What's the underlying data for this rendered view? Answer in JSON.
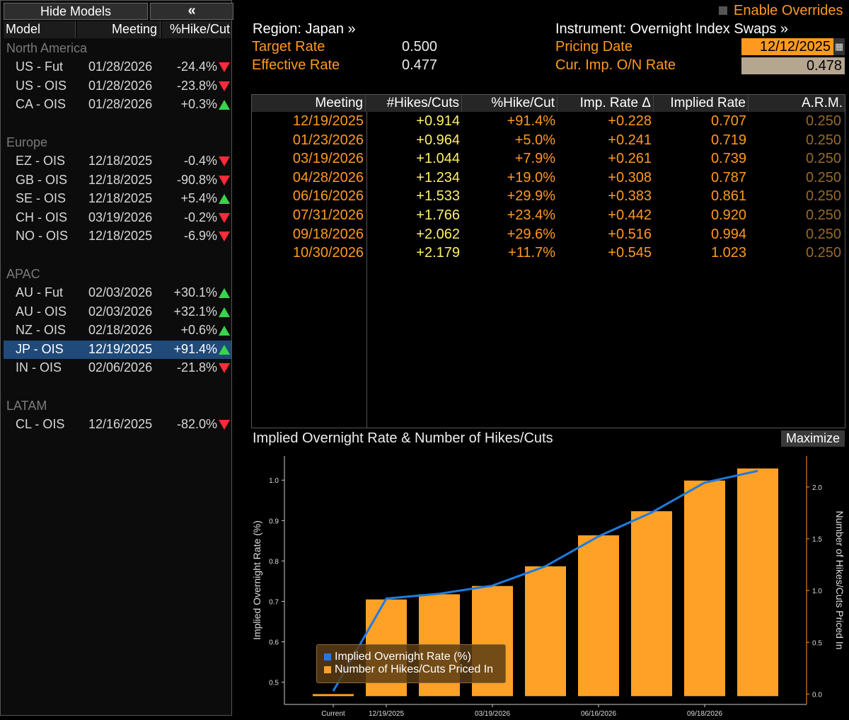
{
  "sidebar": {
    "hide_models_label": "Hide Models",
    "collapse_label": "«",
    "headers": {
      "model": "Model",
      "meeting": "Meeting",
      "pct": "%Hike/Cut"
    },
    "groups": [
      {
        "name": "North America",
        "rows": [
          {
            "model": "US - Fut",
            "meeting": "01/28/2026",
            "pct": "-24.4%",
            "dir": "down"
          },
          {
            "model": "US - OIS",
            "meeting": "01/28/2026",
            "pct": "-23.8%",
            "dir": "down"
          },
          {
            "model": "CA - OIS",
            "meeting": "01/28/2026",
            "pct": "+0.3%",
            "dir": "up"
          }
        ]
      },
      {
        "name": "Europe",
        "rows": [
          {
            "model": "EZ - OIS",
            "meeting": "12/18/2025",
            "pct": "-0.4%",
            "dir": "down"
          },
          {
            "model": "GB - OIS",
            "meeting": "12/18/2025",
            "pct": "-90.8%",
            "dir": "down"
          },
          {
            "model": "SE - OIS",
            "meeting": "12/18/2025",
            "pct": "+5.4%",
            "dir": "up"
          },
          {
            "model": "CH - OIS",
            "meeting": "03/19/2026",
            "pct": "-0.2%",
            "dir": "down"
          },
          {
            "model": "NO - OIS",
            "meeting": "12/18/2025",
            "pct": "-6.9%",
            "dir": "down"
          }
        ]
      },
      {
        "name": "APAC",
        "rows": [
          {
            "model": "AU - Fut",
            "meeting": "02/03/2026",
            "pct": "+30.1%",
            "dir": "up"
          },
          {
            "model": "AU - OIS",
            "meeting": "02/03/2026",
            "pct": "+32.1%",
            "dir": "up"
          },
          {
            "model": "NZ - OIS",
            "meeting": "02/18/2026",
            "pct": "+0.6%",
            "dir": "up"
          },
          {
            "model": "JP - OIS",
            "meeting": "12/19/2025",
            "pct": "+91.4%",
            "dir": "up",
            "selected": true
          },
          {
            "model": "IN - OIS",
            "meeting": "02/06/2026",
            "pct": "-21.8%",
            "dir": "down"
          }
        ]
      },
      {
        "name": "LATAM",
        "rows": [
          {
            "model": "CL - OIS",
            "meeting": "12/16/2025",
            "pct": "-82.0%",
            "dir": "down"
          }
        ]
      }
    ]
  },
  "top": {
    "enable_overrides": "Enable Overrides",
    "region": "Region: Japan »",
    "instrument": "Instrument: Overnight Index Swaps »",
    "target_rate_label": "Target Rate",
    "target_rate": "0.500",
    "effective_rate_label": "Effective Rate",
    "effective_rate": "0.477",
    "pricing_date_label": "Pricing Date",
    "pricing_date": "12/12/2025",
    "calendar_icon": "calendar-icon",
    "cur_rate_label": "Cur. Imp. O/N Rate",
    "cur_rate": "0.478"
  },
  "table": {
    "headers": [
      "Meeting",
      "#Hikes/Cuts",
      "%Hike/Cut",
      "Imp. Rate Δ",
      "Implied Rate",
      "A.R.M."
    ],
    "rows": [
      [
        "12/19/2025",
        "+0.914",
        "+91.4%",
        "+0.228",
        "0.707",
        "0.250"
      ],
      [
        "01/23/2026",
        "+0.964",
        "+5.0%",
        "+0.241",
        "0.719",
        "0.250"
      ],
      [
        "03/19/2026",
        "+1.044",
        "+7.9%",
        "+0.261",
        "0.739",
        "0.250"
      ],
      [
        "04/28/2026",
        "+1.234",
        "+19.0%",
        "+0.308",
        "0.787",
        "0.250"
      ],
      [
        "06/16/2026",
        "+1.533",
        "+29.9%",
        "+0.383",
        "0.861",
        "0.250"
      ],
      [
        "07/31/2026",
        "+1.766",
        "+23.4%",
        "+0.442",
        "0.920",
        "0.250"
      ],
      [
        "09/18/2026",
        "+2.062",
        "+29.6%",
        "+0.516",
        "0.994",
        "0.250"
      ],
      [
        "10/30/2026",
        "+2.179",
        "+11.7%",
        "+0.545",
        "1.023",
        "0.250"
      ]
    ]
  },
  "chart": {
    "title": "Implied Overnight Rate & Number of Hikes/Cuts",
    "maximize_label": "Maximize"
  },
  "chart_data": {
    "type": "bar",
    "categories": [
      "Current",
      "12/19/2025",
      "01/23/2026",
      "03/19/2026",
      "04/28/2026",
      "06/16/2026",
      "07/31/2026",
      "09/18/2026",
      "10/30/2026"
    ],
    "x_tick_labels": [
      "Current",
      "12/19/2025",
      "03/19/2026",
      "06/16/2026",
      "09/18/2026"
    ],
    "series": [
      {
        "name": "Implied Overnight Rate (%)",
        "type": "line",
        "axis": "left",
        "color": "#1e7be0",
        "values": [
          0.478,
          0.707,
          0.719,
          0.739,
          0.787,
          0.861,
          0.92,
          0.994,
          1.023
        ]
      },
      {
        "name": "Number of Hikes/Cuts Priced In",
        "type": "bar",
        "axis": "right",
        "color": "#ffa126",
        "values": [
          0.0,
          0.914,
          0.964,
          1.044,
          1.234,
          1.533,
          1.766,
          2.062,
          2.179
        ]
      }
    ],
    "ylabel": "Implied Overnight Rate (%)",
    "ylabel_right": "Number of Hikes/Cuts Priced In",
    "ylim": [
      0.445,
      1.06
    ],
    "ylim_right": [
      -0.1,
      2.3
    ],
    "y_ticks": [
      "0.5",
      "0.6",
      "0.7",
      "0.8",
      "0.9",
      "1.0"
    ],
    "y_ticks_right": [
      "0.0",
      "0.5",
      "1.0",
      "1.5",
      "2.0"
    ],
    "legend": "bottom-left",
    "grid": false
  }
}
